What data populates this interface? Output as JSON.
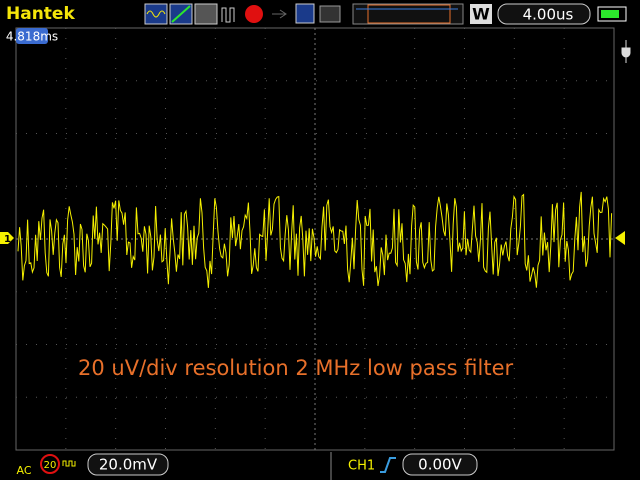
{
  "header": {
    "brand": "Hantek",
    "mode": "W",
    "timebase": "4.00us"
  },
  "trigger_time": "4.818ms",
  "channel_marker": "1",
  "annotation": "20 uV/div resolution 2 MHz low pass filter",
  "footer": {
    "coupling": "AC",
    "bandwidth_limit": "20",
    "volts_per_div": "20.0mV",
    "trigger_source": "CH1",
    "trigger_level": "0.00V"
  }
}
